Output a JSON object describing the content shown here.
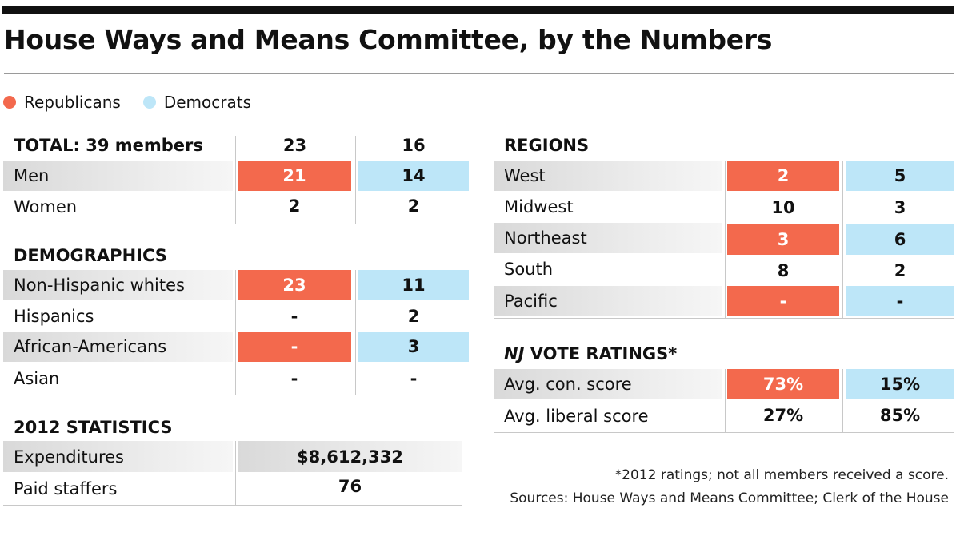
{
  "title": "House Ways and Means Committee, by the Numbers",
  "legend": {
    "republicans": "Republicans",
    "democrats": "Democrats",
    "rep_color": "#f3694d",
    "dem_color": "#bde6f8"
  },
  "totals": {
    "label": "TOTAL: 39 members",
    "rep": "23",
    "dem": "16",
    "rows": [
      {
        "label": "Men",
        "rep": "21",
        "dem": "14"
      },
      {
        "label": "Women",
        "rep": "2",
        "dem": "2"
      }
    ]
  },
  "demographics": {
    "header": "DEMOGRAPHICS",
    "rows": [
      {
        "label": "Non-Hispanic whites",
        "rep": "23",
        "dem": "11"
      },
      {
        "label": "Hispanics",
        "rep": "-",
        "dem": "2"
      },
      {
        "label": "African-Americans",
        "rep": "-",
        "dem": "3"
      },
      {
        "label": "Asian",
        "rep": "-",
        "dem": "-"
      }
    ]
  },
  "statistics": {
    "header": "2012 STATISTICS",
    "rows": [
      {
        "label": "Expenditures",
        "value": "$8,612,332"
      },
      {
        "label": "Paid staffers",
        "value": "76"
      }
    ]
  },
  "regions": {
    "header": "REGIONS",
    "rows": [
      {
        "label": "West",
        "rep": "2",
        "dem": "5"
      },
      {
        "label": "Midwest",
        "rep": "10",
        "dem": "3"
      },
      {
        "label": "Northeast",
        "rep": "3",
        "dem": "6"
      },
      {
        "label": "South",
        "rep": "8",
        "dem": "2"
      },
      {
        "label": "Pacific",
        "rep": "-",
        "dem": "-"
      }
    ]
  },
  "ratings": {
    "header_prefix": "NJ",
    "header_rest": " VOTE RATINGS*",
    "rows": [
      {
        "label": "Avg. con. score",
        "rep": "73%",
        "dem": "15%"
      },
      {
        "label": "Avg. liberal score",
        "rep": "27%",
        "dem": "85%"
      }
    ]
  },
  "notes": {
    "footnote": "*2012 ratings; not all members received a score.",
    "sources": "Sources: House Ways and Means Committee; Clerk of the House"
  }
}
